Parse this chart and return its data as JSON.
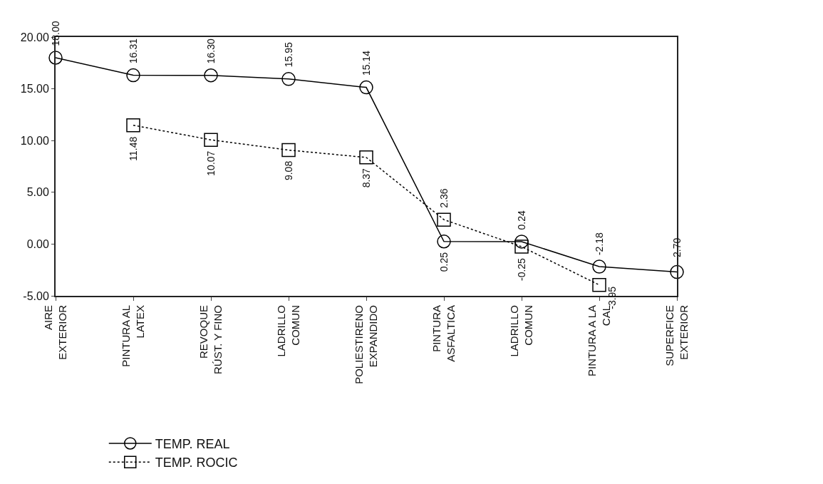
{
  "chart_data": {
    "type": "line",
    "categories": [
      "AIRE\nEXTERIOR",
      "PINTURA AL\nLATEX",
      "REVOQUE\nRÚST. Y FINO",
      "LADRILLO\nCOMUN",
      "POLIESTIRENO\nEXPANDIDO",
      "PINTURA\nASFALTICA",
      "LADRILLO\nCOMUN",
      "PINTURA A LA\nCAL",
      "SUPERFICE\nEXTERIOR"
    ],
    "series": [
      {
        "name": "TEMP. REAL",
        "color": "#000000",
        "marker": "circle",
        "line_style": "solid",
        "values": [
          18.0,
          16.31,
          16.3,
          15.95,
          15.14,
          0.25,
          0.24,
          -2.18,
          -2.7
        ],
        "value_labels": [
          "18.00",
          "16.31",
          "16.30",
          "15.95",
          "15.14",
          "0.25",
          "0.24",
          "-2.18",
          "-2.70"
        ]
      },
      {
        "name": "TEMP. ROCIC",
        "color": "#000000",
        "marker": "square",
        "line_style": "dotted",
        "values": [
          null,
          11.48,
          10.07,
          9.08,
          8.37,
          2.36,
          -0.25,
          -3.95,
          null
        ],
        "value_labels": [
          null,
          "11.48",
          "10.07",
          "9.08",
          "8.37",
          "2.36",
          "-0.25",
          "-3.95",
          null
        ]
      }
    ],
    "ylim": [
      -5,
      20
    ],
    "yticks": [
      {
        "value": -5,
        "label": "-5.00"
      },
      {
        "value": 0,
        "label": "0.00"
      },
      {
        "value": 5,
        "label": "5.00"
      },
      {
        "value": 10,
        "label": "10.00"
      },
      {
        "value": 15,
        "label": "15.00"
      },
      {
        "value": 20,
        "label": "20.00"
      }
    ],
    "grid": false,
    "legend": "bottom"
  }
}
